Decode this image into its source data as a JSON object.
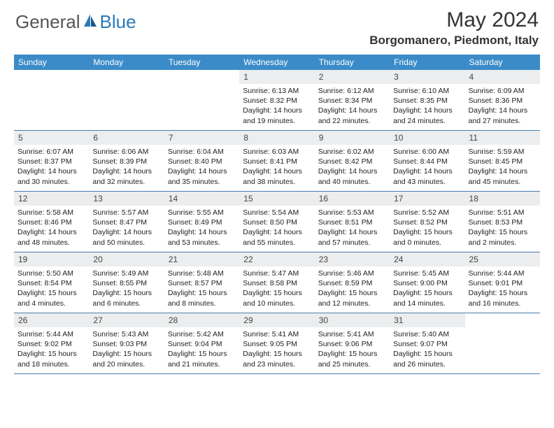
{
  "logo": {
    "general": "General",
    "blue": "Blue"
  },
  "title": "May 2024",
  "location": "Borgomanero, Piedmont, Italy",
  "colors": {
    "header_bg": "#3b8bc8",
    "header_text": "#ffffff",
    "daynum_bg": "#ecedee",
    "border": "#4a7db0",
    "logo_blue": "#2a7ab8",
    "logo_gray": "#555555"
  },
  "day_headers": [
    "Sunday",
    "Monday",
    "Tuesday",
    "Wednesday",
    "Thursday",
    "Friday",
    "Saturday"
  ],
  "weeks": [
    [
      {
        "n": "",
        "sr": "",
        "ss": "",
        "dl": ""
      },
      {
        "n": "",
        "sr": "",
        "ss": "",
        "dl": ""
      },
      {
        "n": "",
        "sr": "",
        "ss": "",
        "dl": ""
      },
      {
        "n": "1",
        "sr": "Sunrise: 6:13 AM",
        "ss": "Sunset: 8:32 PM",
        "dl": "Daylight: 14 hours and 19 minutes."
      },
      {
        "n": "2",
        "sr": "Sunrise: 6:12 AM",
        "ss": "Sunset: 8:34 PM",
        "dl": "Daylight: 14 hours and 22 minutes."
      },
      {
        "n": "3",
        "sr": "Sunrise: 6:10 AM",
        "ss": "Sunset: 8:35 PM",
        "dl": "Daylight: 14 hours and 24 minutes."
      },
      {
        "n": "4",
        "sr": "Sunrise: 6:09 AM",
        "ss": "Sunset: 8:36 PM",
        "dl": "Daylight: 14 hours and 27 minutes."
      }
    ],
    [
      {
        "n": "5",
        "sr": "Sunrise: 6:07 AM",
        "ss": "Sunset: 8:37 PM",
        "dl": "Daylight: 14 hours and 30 minutes."
      },
      {
        "n": "6",
        "sr": "Sunrise: 6:06 AM",
        "ss": "Sunset: 8:39 PM",
        "dl": "Daylight: 14 hours and 32 minutes."
      },
      {
        "n": "7",
        "sr": "Sunrise: 6:04 AM",
        "ss": "Sunset: 8:40 PM",
        "dl": "Daylight: 14 hours and 35 minutes."
      },
      {
        "n": "8",
        "sr": "Sunrise: 6:03 AM",
        "ss": "Sunset: 8:41 PM",
        "dl": "Daylight: 14 hours and 38 minutes."
      },
      {
        "n": "9",
        "sr": "Sunrise: 6:02 AM",
        "ss": "Sunset: 8:42 PM",
        "dl": "Daylight: 14 hours and 40 minutes."
      },
      {
        "n": "10",
        "sr": "Sunrise: 6:00 AM",
        "ss": "Sunset: 8:44 PM",
        "dl": "Daylight: 14 hours and 43 minutes."
      },
      {
        "n": "11",
        "sr": "Sunrise: 5:59 AM",
        "ss": "Sunset: 8:45 PM",
        "dl": "Daylight: 14 hours and 45 minutes."
      }
    ],
    [
      {
        "n": "12",
        "sr": "Sunrise: 5:58 AM",
        "ss": "Sunset: 8:46 PM",
        "dl": "Daylight: 14 hours and 48 minutes."
      },
      {
        "n": "13",
        "sr": "Sunrise: 5:57 AM",
        "ss": "Sunset: 8:47 PM",
        "dl": "Daylight: 14 hours and 50 minutes."
      },
      {
        "n": "14",
        "sr": "Sunrise: 5:55 AM",
        "ss": "Sunset: 8:49 PM",
        "dl": "Daylight: 14 hours and 53 minutes."
      },
      {
        "n": "15",
        "sr": "Sunrise: 5:54 AM",
        "ss": "Sunset: 8:50 PM",
        "dl": "Daylight: 14 hours and 55 minutes."
      },
      {
        "n": "16",
        "sr": "Sunrise: 5:53 AM",
        "ss": "Sunset: 8:51 PM",
        "dl": "Daylight: 14 hours and 57 minutes."
      },
      {
        "n": "17",
        "sr": "Sunrise: 5:52 AM",
        "ss": "Sunset: 8:52 PM",
        "dl": "Daylight: 15 hours and 0 minutes."
      },
      {
        "n": "18",
        "sr": "Sunrise: 5:51 AM",
        "ss": "Sunset: 8:53 PM",
        "dl": "Daylight: 15 hours and 2 minutes."
      }
    ],
    [
      {
        "n": "19",
        "sr": "Sunrise: 5:50 AM",
        "ss": "Sunset: 8:54 PM",
        "dl": "Daylight: 15 hours and 4 minutes."
      },
      {
        "n": "20",
        "sr": "Sunrise: 5:49 AM",
        "ss": "Sunset: 8:55 PM",
        "dl": "Daylight: 15 hours and 6 minutes."
      },
      {
        "n": "21",
        "sr": "Sunrise: 5:48 AM",
        "ss": "Sunset: 8:57 PM",
        "dl": "Daylight: 15 hours and 8 minutes."
      },
      {
        "n": "22",
        "sr": "Sunrise: 5:47 AM",
        "ss": "Sunset: 8:58 PM",
        "dl": "Daylight: 15 hours and 10 minutes."
      },
      {
        "n": "23",
        "sr": "Sunrise: 5:46 AM",
        "ss": "Sunset: 8:59 PM",
        "dl": "Daylight: 15 hours and 12 minutes."
      },
      {
        "n": "24",
        "sr": "Sunrise: 5:45 AM",
        "ss": "Sunset: 9:00 PM",
        "dl": "Daylight: 15 hours and 14 minutes."
      },
      {
        "n": "25",
        "sr": "Sunrise: 5:44 AM",
        "ss": "Sunset: 9:01 PM",
        "dl": "Daylight: 15 hours and 16 minutes."
      }
    ],
    [
      {
        "n": "26",
        "sr": "Sunrise: 5:44 AM",
        "ss": "Sunset: 9:02 PM",
        "dl": "Daylight: 15 hours and 18 minutes."
      },
      {
        "n": "27",
        "sr": "Sunrise: 5:43 AM",
        "ss": "Sunset: 9:03 PM",
        "dl": "Daylight: 15 hours and 20 minutes."
      },
      {
        "n": "28",
        "sr": "Sunrise: 5:42 AM",
        "ss": "Sunset: 9:04 PM",
        "dl": "Daylight: 15 hours and 21 minutes."
      },
      {
        "n": "29",
        "sr": "Sunrise: 5:41 AM",
        "ss": "Sunset: 9:05 PM",
        "dl": "Daylight: 15 hours and 23 minutes."
      },
      {
        "n": "30",
        "sr": "Sunrise: 5:41 AM",
        "ss": "Sunset: 9:06 PM",
        "dl": "Daylight: 15 hours and 25 minutes."
      },
      {
        "n": "31",
        "sr": "Sunrise: 5:40 AM",
        "ss": "Sunset: 9:07 PM",
        "dl": "Daylight: 15 hours and 26 minutes."
      },
      {
        "n": "",
        "sr": "",
        "ss": "",
        "dl": ""
      }
    ]
  ]
}
